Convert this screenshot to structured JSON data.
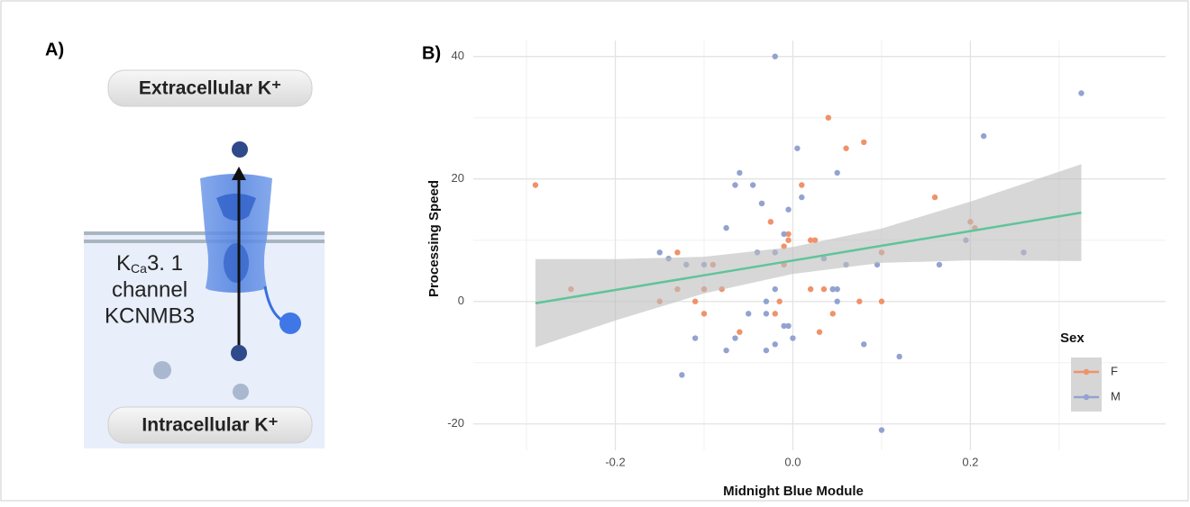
{
  "panel_a": {
    "label": "A)",
    "extracellular": "Extracellular K⁺",
    "intracellular": "Intracellular K⁺",
    "channel_k": "K",
    "channel_sub": "Ca",
    "channel_num": "3. 1",
    "channel_word": "channel",
    "gene": "KCNMB3"
  },
  "chart_data": {
    "type": "scatter",
    "panel_label": "B)",
    "x_label": "Midnight Blue Module",
    "y_label": "Processing Speed",
    "legend_title": "Sex",
    "xlim": [
      -0.36,
      0.42
    ],
    "ylim": [
      -24.3,
      42.6
    ],
    "xticks": [
      -0.2,
      {
        "value": 0,
        "label": "0.0"
      },
      0.2
    ],
    "yticks": [
      -20,
      0,
      20,
      40
    ],
    "x_minor_grid": [
      -0.3,
      -0.1,
      0.1,
      0.3
    ],
    "y_minor_grid": [
      -10,
      10,
      30
    ],
    "grid": true,
    "series": [
      {
        "name": "F",
        "color": "#f0926a",
        "x": [
          -0.29,
          -0.25,
          -0.15,
          -0.13,
          -0.13,
          -0.11,
          -0.1,
          -0.1,
          -0.09,
          -0.08,
          -0.06,
          -0.035,
          -0.025,
          -0.02,
          -0.015,
          -0.01,
          -0.005,
          -0.005,
          -0.01,
          0.01,
          0.02,
          0.02,
          0.025,
          0.03,
          0.035,
          0.04,
          0.045,
          0.045,
          0.06,
          0.075,
          0.08,
          0.1,
          0.1,
          0.16,
          0.2,
          0.205
        ],
        "values": [
          19,
          2,
          0,
          8,
          2,
          0,
          2,
          -2,
          6,
          2,
          -5,
          16,
          13,
          -2,
          0,
          9,
          10,
          11,
          6,
          19,
          10,
          2,
          10,
          -5,
          2,
          30,
          -2,
          2,
          25,
          0,
          26,
          8,
          0,
          17,
          13,
          12
        ]
      },
      {
        "name": "M",
        "color": "#93a3d0",
        "x": [
          -0.15,
          -0.14,
          -0.12,
          -0.1,
          -0.11,
          -0.125,
          -0.075,
          -0.075,
          -0.065,
          -0.06,
          -0.065,
          -0.05,
          -0.045,
          -0.04,
          -0.035,
          -0.03,
          -0.03,
          -0.03,
          -0.02,
          -0.02,
          -0.02,
          -0.02,
          -0.01,
          -0.01,
          -0.005,
          -0.005,
          0.0,
          0.005,
          0.01,
          0.035,
          0.045,
          0.05,
          0.05,
          0.05,
          0.06,
          0.08,
          0.095,
          0.1,
          0.12,
          0.165,
          0.195,
          0.215,
          0.26,
          0.325
        ],
        "values": [
          8,
          7,
          6,
          6,
          -6,
          -12,
          -8,
          12,
          19,
          21,
          -6,
          -2,
          19,
          8,
          16,
          0,
          -8,
          -2,
          40,
          8,
          2,
          -7,
          11,
          -4,
          15,
          -4,
          -6,
          25,
          17,
          7,
          2,
          2,
          0,
          21,
          6,
          -7,
          6,
          -21,
          -9,
          6,
          10,
          27,
          8,
          34
        ]
      }
    ],
    "fit": {
      "color": "#5fc49a",
      "band_color": "#bdbdbd",
      "x": [
        -0.29,
        -0.2,
        -0.1,
        0,
        0.1,
        0.2,
        0.325
      ],
      "y": [
        -0.3,
        1.87,
        4.27,
        6.68,
        9.09,
        11.49,
        14.5
      ],
      "lower": [
        -7.5,
        -3.1,
        1.3,
        4.5,
        6.3,
        6.7,
        6.6
      ],
      "upper": [
        6.9,
        6.9,
        7.3,
        8.9,
        11.9,
        16.3,
        22.4
      ]
    }
  }
}
